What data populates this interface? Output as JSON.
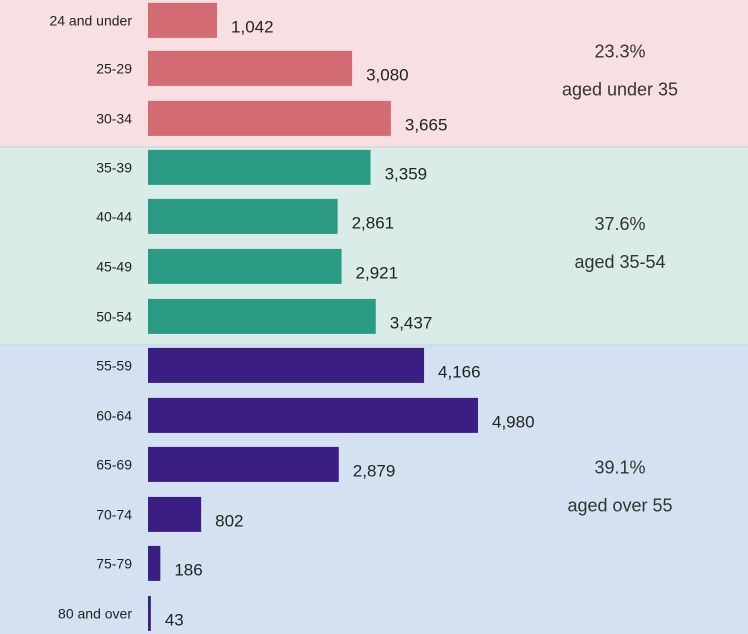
{
  "chart_data": {
    "type": "bar",
    "orientation": "horizontal",
    "categories": [
      "24 and under",
      "25-29",
      "30-34",
      "35-39",
      "40-44",
      "45-49",
      "50-54",
      "55-59",
      "60-64",
      "65-69",
      "70-74",
      "75-79",
      "80 and over"
    ],
    "values": [
      1042,
      3080,
      3665,
      3359,
      2861,
      2921,
      3437,
      4166,
      4980,
      2879,
      802,
      186,
      43
    ],
    "value_labels": [
      "1,042",
      "3,080",
      "3,665",
      "3,359",
      "2,861",
      "2,921",
      "3,437",
      "4,166",
      "4,980",
      "2,879",
      "802",
      "186",
      "43"
    ],
    "title": "",
    "xlabel": "",
    "ylabel": "",
    "xlim": [
      0,
      5600
    ],
    "grid": false,
    "groups": [
      {
        "pct": "23.3%",
        "label": "aged under 35",
        "start": 0,
        "end": 2,
        "bar_color": "#d36b73",
        "band_color": "#f8dfe1"
      },
      {
        "pct": "37.6%",
        "label": "aged 35-54",
        "start": 3,
        "end": 6,
        "bar_color": "#2a9a84",
        "band_color": "#d9ece8"
      },
      {
        "pct": "39.1%",
        "label": "aged over 55",
        "start": 7,
        "end": 12,
        "bar_color": "#3a1e84",
        "band_color": "#d4e1f0"
      }
    ]
  }
}
